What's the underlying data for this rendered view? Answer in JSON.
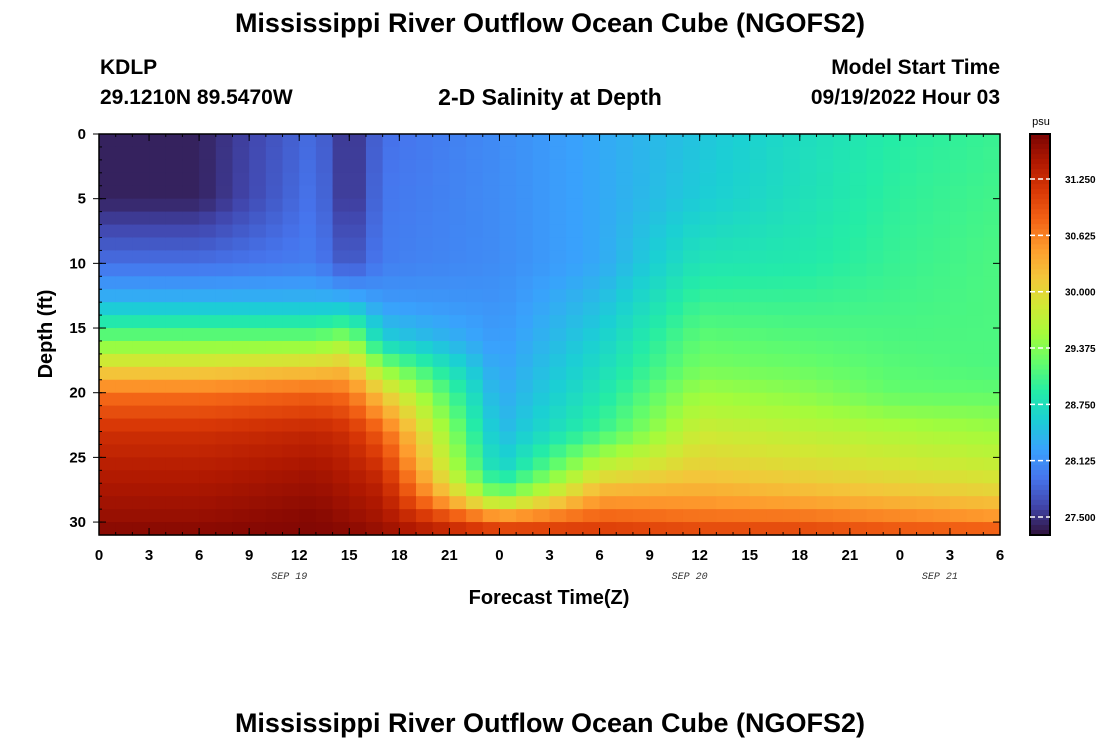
{
  "header": {
    "title": "Mississippi River Outflow Ocean Cube (NGOFS2)",
    "station_id": "KDLP",
    "station_coords": "29.1210N  89.5470W",
    "subtitle": "2-D Salinity at Depth",
    "model_start_label": "Model Start Time",
    "model_start_value": "09/19/2022 Hour 03"
  },
  "footer": {
    "title_repeat": "Mississippi River Outflow Ocean Cube (NGOFS2)"
  },
  "chart_data": {
    "type": "heatmap",
    "title": "2-D Salinity at Depth",
    "xlabel": "Forecast Time(Z)",
    "ylabel": "Depth (ft)",
    "x_tick_labels": [
      "0",
      "3",
      "6",
      "9",
      "12",
      "15",
      "18",
      "21",
      "0",
      "3",
      "6",
      "9",
      "12",
      "15",
      "18",
      "21",
      "0",
      "3",
      "6"
    ],
    "x_hours_since_sep19_00z": [
      0,
      3,
      6,
      9,
      12,
      15,
      18,
      21,
      24,
      27,
      30,
      33,
      36,
      39,
      42,
      45,
      48,
      51,
      54
    ],
    "date_labels": [
      {
        "label": "SEP 19",
        "hour": 12
      },
      {
        "label": "SEP 20",
        "hour": 36
      },
      {
        "label": "SEP 21",
        "hour": 51
      }
    ],
    "xlim": [
      0,
      54
    ],
    "y_tick_labels": [
      "0",
      "5",
      "10",
      "15",
      "20",
      "25",
      "30"
    ],
    "y_ticks": [
      0,
      5,
      10,
      15,
      20,
      25,
      30
    ],
    "ylim": [
      0,
      31
    ],
    "y_inverted": true,
    "colorbar": {
      "unit": "psu",
      "min": 27.3,
      "max": 31.75,
      "tick_labels": [
        "31.250",
        "30.625",
        "30.000",
        "29.375",
        "28.750",
        "28.125",
        "27.500"
      ],
      "ticks": [
        31.25,
        30.625,
        30.0,
        29.375,
        28.75,
        28.125,
        27.5
      ],
      "colormap": [
        "#30123b",
        "#4145ab",
        "#4675ed",
        "#39a2fc",
        "#1bcfd4",
        "#24eca6",
        "#61fc6c",
        "#a4fc3b",
        "#d1e834",
        "#f3c63a",
        "#fe9b2d",
        "#f36315",
        "#d93806",
        "#b11901",
        "#7a0403"
      ]
    },
    "salinity_at_depth_psu": {
      "hours": [
        0,
        6,
        13,
        15,
        17,
        24,
        30,
        36,
        42,
        48,
        54
      ],
      "depths": [
        0,
        5,
        10,
        13,
        16,
        18,
        20,
        23,
        26,
        28,
        30,
        31
      ],
      "values": [
        [
          27.4,
          27.4,
          27.9,
          27.45,
          27.9,
          28.1,
          28.3,
          28.5,
          28.7,
          28.9,
          29.0
        ],
        [
          27.4,
          27.4,
          27.95,
          27.45,
          27.95,
          28.1,
          28.3,
          28.55,
          28.75,
          28.95,
          29.05
        ],
        [
          27.9,
          27.9,
          28.0,
          27.7,
          28.0,
          28.1,
          28.3,
          28.8,
          28.85,
          29.0,
          29.1
        ],
        [
          28.4,
          28.4,
          28.4,
          28.4,
          28.2,
          28.15,
          28.45,
          29.0,
          29.0,
          29.05,
          29.1
        ],
        [
          29.3,
          29.3,
          29.3,
          29.5,
          28.6,
          28.2,
          28.6,
          29.2,
          29.15,
          29.1,
          29.1
        ],
        [
          30.0,
          30.0,
          30.1,
          30.2,
          29.4,
          28.25,
          28.7,
          29.3,
          29.25,
          29.15,
          29.1
        ],
        [
          30.7,
          30.7,
          30.8,
          30.7,
          30.1,
          28.3,
          28.8,
          29.5,
          29.4,
          29.2,
          29.2
        ],
        [
          31.2,
          31.2,
          31.3,
          31.2,
          30.8,
          28.4,
          29.0,
          29.8,
          29.7,
          29.6,
          29.5
        ],
        [
          31.4,
          31.4,
          31.5,
          31.4,
          31.2,
          28.6,
          29.8,
          30.1,
          30.0,
          29.9,
          29.8
        ],
        [
          31.5,
          31.5,
          31.6,
          31.5,
          31.4,
          29.3,
          30.4,
          30.4,
          30.3,
          30.2,
          30.1
        ],
        [
          31.6,
          31.6,
          31.7,
          31.6,
          31.5,
          30.8,
          30.9,
          30.8,
          30.8,
          30.7,
          30.6
        ],
        [
          31.7,
          31.7,
          31.7,
          31.7,
          31.6,
          31.2,
          31.2,
          31.1,
          31.1,
          31.0,
          31.0
        ]
      ]
    },
    "grid_cells": {
      "columns": 54,
      "rows": 31
    }
  }
}
